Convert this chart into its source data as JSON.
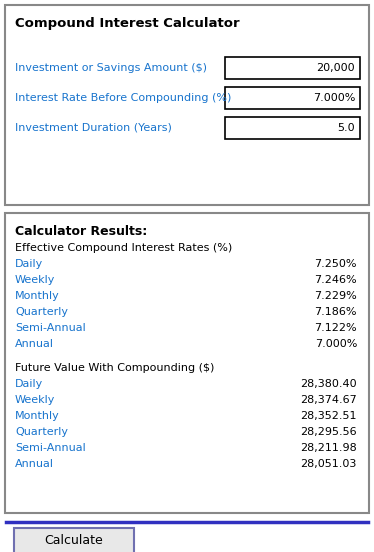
{
  "title": "Compound Interest Calculator",
  "bg_color": "#ffffff",
  "input_labels": [
    "Investment or Savings Amount ($)",
    "Interest Rate Before Compounding (%)",
    "Investment Duration (Years)"
  ],
  "input_values": [
    "20,000",
    "7.000%",
    "5.0"
  ],
  "results_title": "Calculator Results:",
  "rates_header": "Effective Compound Interest Rates (%)",
  "rates_labels": [
    "Daily",
    "Weekly",
    "Monthly",
    "Quarterly",
    "Semi-Annual",
    "Annual"
  ],
  "rates_values": [
    "7.250%",
    "7.246%",
    "7.229%",
    "7.186%",
    "7.122%",
    "7.000%"
  ],
  "fv_header": "Future Value With Compounding ($)",
  "fv_labels": [
    "Daily",
    "Weekly",
    "Monthly",
    "Quarterly",
    "Semi-Annual",
    "Annual"
  ],
  "fv_values": [
    "28,380.40",
    "28,374.67",
    "28,352.51",
    "28,295.56",
    "28,211.98",
    "28,051.03"
  ],
  "label_color": "#1874CD",
  "value_color": "#000000",
  "header_color": "#000000",
  "title_color": "#000000",
  "button_text": "Calculate",
  "button_bg": "#e8e8e8",
  "button_border": "#7070b0",
  "panel_border": "#888888",
  "blue_line_color": "#3030c0"
}
